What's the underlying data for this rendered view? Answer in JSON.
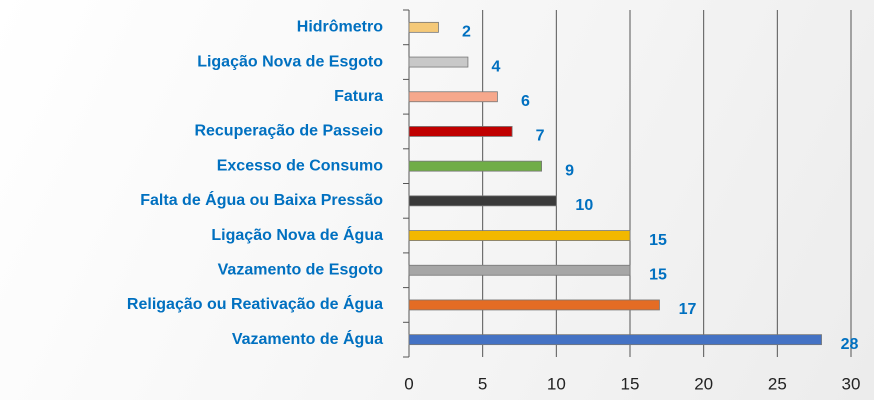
{
  "chart_data": {
    "type": "barh",
    "categories": [
      "Hidrômetro",
      "Ligação Nova de Esgoto",
      "Fatura",
      "Recuperação de Passeio",
      "Excesso de Consumo",
      "Falta de Água ou Baixa Pressão",
      "Ligação Nova de Água",
      "Vazamento de Esgoto",
      "Religação ou Reativação de Água",
      "Vazamento de Água"
    ],
    "values": [
      2,
      4,
      6,
      7,
      9,
      10,
      15,
      15,
      17,
      28
    ],
    "colors": [
      "#f5c978",
      "#c8c8c8",
      "#f6a88c",
      "#c00000",
      "#70ad47",
      "#3a3a3a",
      "#f2b800",
      "#a6a6a6",
      "#e46c24",
      "#4472c4"
    ],
    "xlim": [
      0,
      30
    ],
    "xticks": [
      0,
      5,
      10,
      15,
      20,
      25,
      30
    ],
    "grid": true,
    "label_color": "#0070c0"
  }
}
